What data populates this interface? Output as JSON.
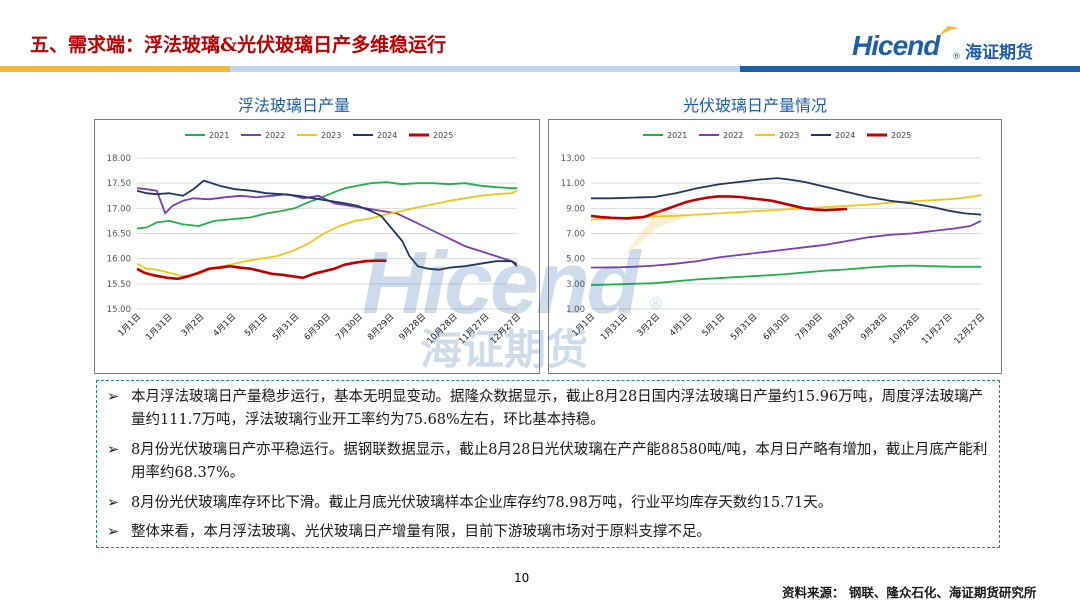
{
  "header": {
    "title": "五、需求端：浮法玻璃&光伏玻璃日产多维稳运行",
    "logo_en": "Hicend",
    "logo_reg": "®",
    "logo_cn": "海证期货"
  },
  "watermark": {
    "en": "Hicend",
    "reg": "®",
    "cn": "海证期货"
  },
  "chart_data": [
    {
      "type": "line",
      "title": "浮法玻璃日产量",
      "xlabel": "",
      "ylabel": "",
      "ylim": [
        15.0,
        18.0
      ],
      "yticks": [
        "18.00",
        "17.50",
        "17.00",
        "16.50",
        "16.00",
        "15.50",
        "15.00"
      ],
      "ytick_values": [
        18.0,
        17.5,
        17.0,
        16.5,
        16.0,
        15.5,
        15.0
      ],
      "xticks": [
        "1月1日",
        "1月31日",
        "3月2日",
        "4月1日",
        "5月1日",
        "5月31日",
        "6月30日",
        "7月30日",
        "8月29日",
        "9月28日",
        "10月28日",
        "11月27日",
        "12月27日"
      ],
      "x_day_range": [
        1,
        365
      ],
      "legend": [
        "2021",
        "2022",
        "2023",
        "2024",
        "2025"
      ],
      "series": [
        {
          "name": "2021",
          "color": "#22b14c",
          "x": [
            1,
            10,
            20,
            32,
            45,
            60,
            75,
            90,
            110,
            125,
            140,
            152,
            165,
            178,
            190,
            200,
            212,
            225,
            240,
            255,
            270,
            285,
            300,
            315,
            330,
            345,
            360,
            365
          ],
          "y": [
            16.6,
            16.62,
            16.72,
            16.75,
            16.68,
            16.65,
            16.75,
            16.78,
            16.82,
            16.9,
            16.95,
            17.0,
            17.12,
            17.22,
            17.32,
            17.4,
            17.45,
            17.5,
            17.52,
            17.48,
            17.5,
            17.5,
            17.48,
            17.5,
            17.45,
            17.42,
            17.4,
            17.4
          ]
        },
        {
          "name": "2022",
          "color": "#7d3fb5",
          "x": [
            1,
            10,
            20,
            28,
            35,
            45,
            55,
            70,
            85,
            100,
            115,
            130,
            145,
            160,
            175,
            190,
            205,
            220,
            235,
            250,
            265,
            280,
            295,
            305,
            315,
            330,
            345,
            360,
            365
          ],
          "y": [
            17.4,
            17.38,
            17.35,
            16.9,
            17.05,
            17.15,
            17.2,
            17.18,
            17.22,
            17.25,
            17.22,
            17.25,
            17.28,
            17.2,
            17.25,
            17.1,
            17.05,
            17.0,
            16.95,
            16.9,
            16.75,
            16.6,
            16.45,
            16.35,
            16.25,
            16.15,
            16.05,
            15.95,
            15.9
          ]
        },
        {
          "name": "2023",
          "color": "#f5c518",
          "x": [
            1,
            10,
            20,
            32,
            45,
            60,
            75,
            90,
            105,
            120,
            135,
            150,
            165,
            180,
            195,
            210,
            225,
            240,
            255,
            270,
            285,
            300,
            315,
            330,
            345,
            360,
            365
          ],
          "y": [
            15.9,
            15.8,
            15.78,
            15.72,
            15.65,
            15.7,
            15.82,
            15.88,
            15.95,
            16.0,
            16.05,
            16.15,
            16.3,
            16.5,
            16.65,
            16.75,
            16.8,
            16.88,
            16.95,
            17.02,
            17.08,
            17.15,
            17.2,
            17.25,
            17.28,
            17.3,
            17.35
          ]
        },
        {
          "name": "2024",
          "color": "#203864",
          "x": [
            1,
            10,
            20,
            32,
            45,
            55,
            65,
            80,
            95,
            110,
            125,
            140,
            155,
            170,
            185,
            200,
            212,
            225,
            235,
            245,
            255,
            262,
            270,
            280,
            290,
            300,
            315,
            330,
            345,
            360,
            365
          ],
          "y": [
            17.35,
            17.3,
            17.28,
            17.3,
            17.25,
            17.38,
            17.55,
            17.45,
            17.38,
            17.35,
            17.3,
            17.28,
            17.25,
            17.2,
            17.15,
            17.1,
            17.05,
            16.95,
            16.85,
            16.6,
            16.35,
            16.05,
            15.85,
            15.8,
            15.78,
            15.82,
            15.85,
            15.9,
            15.95,
            15.95,
            15.85
          ]
        },
        {
          "name": "2025",
          "color": "#c00000",
          "x": [
            1,
            8,
            15,
            22,
            30,
            40,
            50,
            60,
            70,
            80,
            90,
            100,
            110,
            120,
            130,
            140,
            150,
            160,
            170,
            180,
            190,
            200,
            210,
            220,
            230,
            240
          ],
          "y": [
            15.8,
            15.72,
            15.68,
            15.65,
            15.62,
            15.6,
            15.65,
            15.72,
            15.8,
            15.82,
            15.85,
            15.82,
            15.8,
            15.75,
            15.7,
            15.68,
            15.65,
            15.62,
            15.7,
            15.75,
            15.8,
            15.88,
            15.92,
            15.95,
            15.96,
            15.96
          ]
        }
      ]
    },
    {
      "type": "line",
      "title": "光伏玻璃日产量情况",
      "xlabel": "",
      "ylabel": "",
      "ylim": [
        1.0,
        13.0
      ],
      "yticks": [
        "13.00",
        "11.00",
        "9.00",
        "7.00",
        "5.00",
        "3.00",
        "1.00"
      ],
      "ytick_values": [
        13.0,
        11.0,
        9.0,
        7.0,
        5.0,
        3.0,
        1.0
      ],
      "xticks": [
        "1月1日",
        "1月31日",
        "3月2日",
        "4月1日",
        "5月1日",
        "5月31日",
        "6月30日",
        "7月30日",
        "8月29日",
        "9月28日",
        "10月28日",
        "11月27日",
        "12月27日"
      ],
      "x_day_range": [
        1,
        365
      ],
      "legend": [
        "2021",
        "2022",
        "2023",
        "2024",
        "2025"
      ],
      "series": [
        {
          "name": "2021",
          "color": "#22b14c",
          "x": [
            1,
            20,
            40,
            60,
            80,
            100,
            120,
            140,
            160,
            180,
            200,
            220,
            240,
            260,
            280,
            300,
            320,
            340,
            360,
            365
          ],
          "y": [
            2.9,
            2.95,
            3.0,
            3.05,
            3.2,
            3.35,
            3.45,
            3.55,
            3.65,
            3.75,
            3.9,
            4.05,
            4.15,
            4.3,
            4.4,
            4.45,
            4.4,
            4.35,
            4.35,
            4.35
          ]
        },
        {
          "name": "2022",
          "color": "#7d3fb5",
          "x": [
            1,
            20,
            40,
            60,
            80,
            100,
            120,
            140,
            160,
            180,
            200,
            220,
            240,
            260,
            280,
            300,
            320,
            340,
            355,
            365
          ],
          "y": [
            4.3,
            4.3,
            4.35,
            4.45,
            4.6,
            4.8,
            5.1,
            5.3,
            5.5,
            5.7,
            5.9,
            6.1,
            6.4,
            6.7,
            6.9,
            7.0,
            7.2,
            7.4,
            7.6,
            8.0
          ]
        },
        {
          "name": "2023",
          "color": "#f5c518",
          "x": [
            1,
            20,
            40,
            60,
            80,
            100,
            120,
            140,
            160,
            180,
            200,
            220,
            240,
            260,
            280,
            300,
            320,
            340,
            355,
            365
          ],
          "y": [
            8.1,
            8.2,
            8.3,
            8.35,
            8.4,
            8.5,
            8.6,
            8.7,
            8.8,
            8.9,
            9.0,
            9.1,
            9.2,
            9.3,
            9.45,
            9.55,
            9.65,
            9.75,
            9.9,
            10.05
          ]
        },
        {
          "name": "2024",
          "color": "#203864",
          "x": [
            1,
            20,
            40,
            60,
            80,
            100,
            120,
            140,
            160,
            175,
            185,
            200,
            220,
            240,
            260,
            280,
            300,
            320,
            335,
            350,
            365
          ],
          "y": [
            9.8,
            9.8,
            9.85,
            9.9,
            10.2,
            10.6,
            10.9,
            11.1,
            11.3,
            11.4,
            11.3,
            11.1,
            10.7,
            10.3,
            9.9,
            9.6,
            9.4,
            9.1,
            8.8,
            8.6,
            8.5
          ]
        },
        {
          "name": "2025",
          "color": "#c00000",
          "x": [
            1,
            10,
            20,
            35,
            50,
            60,
            70,
            80,
            90,
            100,
            110,
            120,
            130,
            140,
            150,
            160,
            170,
            180,
            190,
            200,
            210,
            220,
            230,
            240
          ],
          "y": [
            8.4,
            8.3,
            8.25,
            8.2,
            8.3,
            8.6,
            8.9,
            9.2,
            9.5,
            9.7,
            9.85,
            9.95,
            9.95,
            9.9,
            9.8,
            9.7,
            9.6,
            9.4,
            9.2,
            9.0,
            8.9,
            8.85,
            8.9,
            8.95
          ]
        }
      ]
    }
  ],
  "notes": [
    {
      "bullet": "➢",
      "text": "本月浮法玻璃日产量稳步运行，基本无明显变动。据隆众数据显示，截止8月28日国内浮法玻璃日产量约15.96万吨，周度浮法玻璃产量约111.7万吨，浮法玻璃行业开工率约为75.68%左右，环比基本持稳。"
    },
    {
      "bullet": "➢",
      "text": "8月份光伏玻璃日产亦平稳运行。据钢联数据显示，截止8月28日光伏玻璃在产产能88580吨/吨，本月日产略有增加，截止月底产能利用率约68.37%。"
    },
    {
      "bullet": "➢",
      "text": "8月份光伏玻璃库存环比下滑。截止月底光伏玻璃样本企业库存约78.98万吨，行业平均库存天数约15.71天。"
    },
    {
      "bullet": "➢",
      "text": "整体来看，本月浮法玻璃、光伏玻璃日产增量有限，目前下游玻璃市场对于原料支撑不足。"
    }
  ],
  "footer": {
    "page_number": "10",
    "source": "资料来源：  钢联、隆众石化、海证期货研究所"
  }
}
